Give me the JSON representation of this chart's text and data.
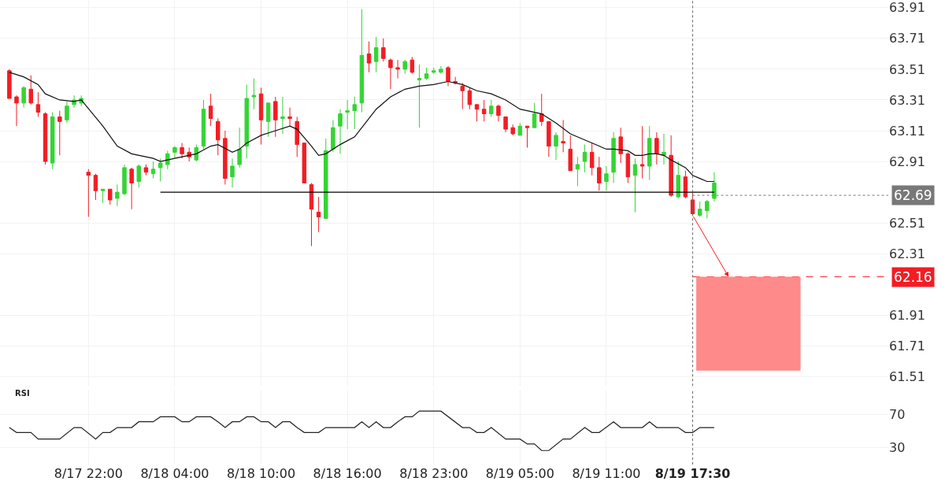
{
  "chart_data": [
    {
      "type": "candlestick",
      "categories": [
        null,
        null,
        null,
        null,
        null,
        null,
        null,
        null,
        null,
        null,
        null,
        "8/17 22:00",
        null,
        null,
        null,
        null,
        null,
        null,
        null,
        null,
        null,
        null,
        null,
        "8/18 04:00",
        null,
        null,
        null,
        null,
        null,
        null,
        null,
        null,
        null,
        null,
        null,
        "8/18 10:00",
        null,
        null,
        null,
        null,
        null,
        null,
        null,
        null,
        null,
        null,
        null,
        "8/18 16:00",
        null,
        null,
        null,
        null,
        null,
        null,
        null,
        null,
        null,
        null,
        null,
        "8/18 23:00",
        null,
        null,
        null,
        null,
        null,
        null,
        null,
        null,
        null,
        null,
        null,
        "8/19 05:00",
        null,
        null,
        null,
        null,
        null,
        null,
        null,
        null,
        null,
        null,
        null,
        "8/19 11:00",
        null,
        null,
        null,
        null,
        null,
        null,
        null,
        null,
        null,
        null,
        null,
        "8/19 17:30",
        null,
        null,
        null,
        null,
        null,
        null,
        null,
        null,
        null,
        null,
        null,
        null,
        null,
        null,
        null,
        null,
        null,
        null,
        null,
        null,
        null,
        null,
        null,
        null,
        null,
        null,
        null
      ],
      "ohlc": [
        [
          63.5,
          63.51,
          63.32,
          63.32
        ],
        [
          63.33,
          63.34,
          63.14,
          63.29
        ],
        [
          63.29,
          63.4,
          63.26,
          63.39
        ],
        [
          63.38,
          63.47,
          63.28,
          63.29
        ],
        [
          63.28,
          63.36,
          63.2,
          63.23
        ],
        [
          63.22,
          63.23,
          62.89,
          62.91
        ],
        [
          62.9,
          63.23,
          62.86,
          63.2
        ],
        [
          63.2,
          63.24,
          62.95,
          63.17
        ],
        [
          63.18,
          63.3,
          63.16,
          63.27
        ],
        [
          63.28,
          63.34,
          63.26,
          63.31
        ],
        [
          63.29,
          63.34,
          63.27,
          63.32
        ],
        [
          62.84,
          62.86,
          62.55,
          62.82
        ],
        [
          62.82,
          62.83,
          62.66,
          62.72
        ],
        [
          62.72,
          62.73,
          62.64,
          62.73
        ],
        [
          62.73,
          62.73,
          62.63,
          62.66
        ],
        [
          62.67,
          62.76,
          62.62,
          62.71
        ],
        [
          62.7,
          62.89,
          62.69,
          62.87
        ],
        [
          62.86,
          62.87,
          62.6,
          62.77
        ],
        [
          62.78,
          62.89,
          62.74,
          62.88
        ],
        [
          62.87,
          62.89,
          62.82,
          62.84
        ],
        [
          62.83,
          62.91,
          62.8,
          62.86
        ],
        [
          62.87,
          62.93,
          62.78,
          62.9
        ],
        [
          62.89,
          62.98,
          62.86,
          62.96
        ],
        [
          62.97,
          63.01,
          62.93,
          63.0
        ],
        [
          63.0,
          63.03,
          62.93,
          62.96
        ],
        [
          62.97,
          63.0,
          62.91,
          62.94
        ],
        [
          62.92,
          63.02,
          62.91,
          63.0
        ],
        [
          63.01,
          63.31,
          62.99,
          63.25
        ],
        [
          63.27,
          63.35,
          63.14,
          63.19
        ],
        [
          63.17,
          63.19,
          62.95,
          63.05
        ],
        [
          63.06,
          63.11,
          62.76,
          62.8
        ],
        [
          62.81,
          62.93,
          62.74,
          62.88
        ],
        [
          62.89,
          63.13,
          62.87,
          62.99
        ],
        [
          63.01,
          63.41,
          62.93,
          63.32
        ],
        [
          63.33,
          63.45,
          63.25,
          63.34
        ],
        [
          63.35,
          63.39,
          63.02,
          63.18
        ],
        [
          63.17,
          63.29,
          63.07,
          63.29
        ],
        [
          63.3,
          63.33,
          63.07,
          63.18
        ],
        [
          63.19,
          63.33,
          63.09,
          63.2
        ],
        [
          63.2,
          63.26,
          63.14,
          63.19
        ],
        [
          63.17,
          63.2,
          62.94,
          63.02
        ],
        [
          63.03,
          63.03,
          62.77,
          62.77
        ],
        [
          62.76,
          62.77,
          62.36,
          62.6
        ],
        [
          62.58,
          62.68,
          62.45,
          62.55
        ],
        [
          62.54,
          63.06,
          62.54,
          62.98
        ],
        [
          62.99,
          63.18,
          62.97,
          63.13
        ],
        [
          63.14,
          63.25,
          62.96,
          63.22
        ],
        [
          63.23,
          63.31,
          63.12,
          63.24
        ],
        [
          63.24,
          63.33,
          63.12,
          63.28
        ],
        [
          63.29,
          63.9,
          63.23,
          63.6
        ],
        [
          63.61,
          63.69,
          63.49,
          63.55
        ],
        [
          63.56,
          63.72,
          63.49,
          63.65
        ],
        [
          63.65,
          63.71,
          63.56,
          63.58
        ],
        [
          63.57,
          63.58,
          63.38,
          63.52
        ],
        [
          63.52,
          63.57,
          63.45,
          63.51
        ],
        [
          63.51,
          63.57,
          63.48,
          63.56
        ],
        [
          63.57,
          63.59,
          63.48,
          63.49
        ],
        [
          63.44,
          63.54,
          63.13,
          63.45
        ],
        [
          63.45,
          63.52,
          63.44,
          63.48
        ],
        [
          63.49,
          63.52,
          63.48,
          63.5
        ],
        [
          63.49,
          63.53,
          63.48,
          63.51
        ],
        [
          63.52,
          63.53,
          63.4,
          63.43
        ],
        [
          63.43,
          63.46,
          63.41,
          63.42
        ],
        [
          63.4,
          63.42,
          63.25,
          63.37
        ],
        [
          63.37,
          63.39,
          63.25,
          63.28
        ],
        [
          63.28,
          63.28,
          63.17,
          63.25
        ],
        [
          63.25,
          63.31,
          63.17,
          63.22
        ],
        [
          63.22,
          63.31,
          63.2,
          63.27
        ],
        [
          63.27,
          63.28,
          63.17,
          63.21
        ],
        [
          63.2,
          63.2,
          63.1,
          63.12
        ],
        [
          63.13,
          63.15,
          63.08,
          63.09
        ],
        [
          63.08,
          63.16,
          63.08,
          63.14
        ],
        [
          63.14,
          63.14,
          63.0,
          63.13
        ],
        [
          63.13,
          63.29,
          63.13,
          63.22
        ],
        [
          63.22,
          63.35,
          63.14,
          63.17
        ],
        [
          63.17,
          63.17,
          62.94,
          63.01
        ],
        [
          63.01,
          63.1,
          62.92,
          63.08
        ],
        [
          63.04,
          63.18,
          62.97,
          63.03
        ],
        [
          62.99,
          63.08,
          62.85,
          62.85
        ],
        [
          62.86,
          62.94,
          62.75,
          62.89
        ],
        [
          62.91,
          63.02,
          62.84,
          62.97
        ],
        [
          62.97,
          63.03,
          62.82,
          62.87
        ],
        [
          62.87,
          62.94,
          62.72,
          62.77
        ],
        [
          62.78,
          62.88,
          62.72,
          62.83
        ],
        [
          62.84,
          63.1,
          62.77,
          63.06
        ],
        [
          63.07,
          63.13,
          62.9,
          62.96
        ],
        [
          62.96,
          62.97,
          62.77,
          62.81
        ],
        [
          62.82,
          62.93,
          62.58,
          62.89
        ],
        [
          62.89,
          63.14,
          62.8,
          62.88
        ],
        [
          62.88,
          63.14,
          62.79,
          63.06
        ],
        [
          63.06,
          63.1,
          62.89,
          62.96
        ],
        [
          62.95,
          63.09,
          62.89,
          62.97
        ],
        [
          62.95,
          63.08,
          62.68,
          62.69
        ],
        [
          62.68,
          62.91,
          62.67,
          62.82
        ],
        [
          62.81,
          62.85,
          62.67,
          62.68
        ],
        [
          62.66,
          62.72,
          62.56,
          62.57
        ],
        [
          62.56,
          62.65,
          62.55,
          62.6
        ],
        [
          62.59,
          62.66,
          62.54,
          62.65
        ],
        [
          62.67,
          62.84,
          62.65,
          62.77
        ],
        null,
        null,
        null,
        null,
        null,
        null,
        null,
        null,
        null,
        null,
        null,
        null,
        null,
        null,
        null,
        null,
        null,
        null,
        null,
        null,
        null,
        null,
        null,
        null
      ],
      "colors": [
        "#f21d24",
        "#f21d24",
        "#35d435",
        "#f21d24",
        "#f21d24",
        "#f21d24",
        "#35d435",
        "#f21d24",
        "#35d435",
        "#35d435",
        "#35d435",
        "#f21d24",
        "#f21d24",
        "#35d435",
        "#f21d24",
        "#35d435",
        "#35d435",
        "#f21d24",
        "#35d435",
        "#f21d24",
        "#35d435",
        "#35d435",
        "#35d435",
        "#35d435",
        "#f21d24",
        "#f21d24",
        "#35d435",
        "#35d435",
        "#f21d24",
        "#f21d24",
        "#f21d24",
        "#35d435",
        "#35d435",
        "#35d435",
        "#35d435",
        "#f21d24",
        "#35d435",
        "#f21d24",
        "#35d435",
        "#f21d24",
        "#f21d24",
        "#f21d24",
        "#f21d24",
        "#f21d24",
        "#35d435",
        "#35d435",
        "#35d435",
        "#35d435",
        "#35d435",
        "#35d435",
        "#f21d24",
        "#35d435",
        "#f21d24",
        "#f21d24",
        "#f21d24",
        "#35d435",
        "#f21d24",
        "#35d435",
        "#35d435",
        "#35d435",
        "#35d435",
        "#f21d24",
        "#f21d24",
        "#f21d24",
        "#f21d24",
        "#f21d24",
        "#f21d24",
        "#35d435",
        "#f21d24",
        "#f21d24",
        "#f21d24",
        "#35d435",
        "#f21d24",
        "#35d435",
        "#f21d24",
        "#f21d24",
        "#35d435",
        "#f21d24",
        "#f21d24",
        "#35d435",
        "#35d435",
        "#f21d24",
        "#f21d24",
        "#35d435",
        "#35d435",
        "#f21d24",
        "#f21d24",
        "#35d435",
        "#f21d24",
        "#35d435",
        "#f21d24",
        "#35d435",
        "#f21d24",
        "#35d435",
        "#f21d24",
        "#f21d24",
        "#35d435",
        "#35d435",
        "#35d435",
        null,
        null,
        null,
        null,
        null,
        null,
        null,
        null,
        null,
        null,
        null,
        null,
        null,
        null,
        null,
        null,
        null,
        null,
        null,
        null,
        null,
        null,
        null,
        null
      ],
      "series": [
        {
          "type": "line",
          "color": "#111111",
          "values": [
            63.49,
            null,
            63.46,
            null,
            63.41,
            63.35,
            null,
            63.31,
            null,
            63.3,
            63.31,
            null,
            null,
            63.14,
            null,
            63.01,
            null,
            62.96,
            null,
            null,
            62.93,
            62.91,
            null,
            62.93,
            null,
            null,
            62.96,
            null,
            63.01,
            63.02,
            null,
            62.97,
            62.99,
            63.03,
            null,
            63.08,
            null,
            63.11,
            null,
            63.14,
            63.12,
            null,
            63.01,
            62.95,
            62.96,
            null,
            63.02,
            null,
            63.07,
            63.13,
            null,
            63.25,
            null,
            63.33,
            null,
            63.38,
            null,
            63.4,
            null,
            63.41,
            null,
            63.43,
            null,
            63.41,
            null,
            63.37,
            null,
            63.35,
            null,
            63.31,
            null,
            63.25,
            63.24,
            63.23,
            63.22,
            null,
            63.16,
            null,
            63.09,
            null,
            63.05,
            null,
            63.01,
            62.99,
            62.99,
            null,
            62.98,
            62.95,
            62.95,
            62.96,
            62.96,
            62.95,
            62.92,
            null,
            62.87,
            62.82,
            62.8,
            62.78,
            62.78,
            null,
            null,
            null,
            null,
            null,
            null,
            null,
            null,
            null,
            null,
            null,
            null,
            null,
            null,
            null,
            null,
            null,
            null,
            null,
            null,
            null,
            null,
            null,
            null
          ]
        },
        {
          "type": "line",
          "color": "#000000",
          "values": [
            null,
            null,
            null,
            null,
            null,
            null,
            null,
            null,
            null,
            null,
            null,
            null,
            null,
            null,
            null,
            null,
            null,
            null,
            null,
            null,
            null,
            62.71,
            null,
            null,
            null,
            null,
            null,
            null,
            null,
            null,
            null,
            null,
            null,
            null,
            null,
            null,
            null,
            null,
            null,
            null,
            null,
            null,
            null,
            null,
            null,
            null,
            null,
            null,
            null,
            null,
            null,
            null,
            null,
            null,
            null,
            null,
            null,
            null,
            null,
            null,
            null,
            null,
            null,
            null,
            null,
            null,
            null,
            null,
            null,
            null,
            null,
            null,
            null,
            null,
            null,
            null,
            null,
            null,
            null,
            null,
            null,
            null,
            null,
            null,
            null,
            null,
            null,
            null,
            null,
            null,
            null,
            null,
            null,
            null,
            null,
            null,
            null,
            null,
            62.71,
            null,
            null,
            null,
            null,
            null,
            null,
            null,
            null,
            null,
            null,
            null,
            null,
            null,
            null,
            null,
            null,
            null,
            null,
            null,
            null,
            null,
            null,
            null,
            null
          ]
        }
      ],
      "ylim": [
        61.45,
        63.96
      ],
      "yticks": [
        61.51,
        61.71,
        61.91,
        62.31,
        62.51,
        62.91,
        63.11,
        63.31,
        63.51,
        63.71,
        63.91
      ],
      "ref_lines": [
        {
          "axis": "y",
          "value": 62.69,
          "label": "62.69",
          "color": "#787878",
          "line_style": "dotted"
        },
        {
          "axis": "y",
          "value": 62.16,
          "label": "62.16",
          "color": "#f21d24",
          "line_style": "dashed"
        },
        {
          "axis": "x",
          "value": "8/19 17:30",
          "color": "#666666",
          "line_style": "dotted"
        }
      ],
      "bands": [
        {
          "axis": "y",
          "from": 61.55,
          "to": 62.16,
          "color": "#ff8a8a"
        }
      ],
      "grid": true,
      "tick_labels": "y"
    },
    {
      "type": "line",
      "title": "RSI",
      "categories": [
        null,
        null,
        null,
        null,
        null,
        null,
        null,
        null,
        null,
        null,
        null,
        "8/17 22:00",
        null,
        null,
        null,
        null,
        null,
        null,
        null,
        null,
        null,
        null,
        null,
        "8/18 04:00",
        null,
        null,
        null,
        null,
        null,
        null,
        null,
        null,
        null,
        null,
        null,
        "8/18 10:00",
        null,
        null,
        null,
        null,
        null,
        null,
        null,
        null,
        null,
        null,
        null,
        "8/18 16:00",
        null,
        null,
        null,
        null,
        null,
        null,
        null,
        null,
        null,
        null,
        null,
        "8/18 23:00",
        null,
        null,
        null,
        null,
        null,
        null,
        null,
        null,
        null,
        null,
        null,
        "8/19 05:00",
        null,
        null,
        null,
        null,
        null,
        null,
        null,
        null,
        null,
        null,
        null,
        "8/19 11:00",
        null,
        null,
        null,
        null,
        null,
        null,
        null,
        null,
        null,
        null,
        null,
        "8/19 17:30",
        null,
        null,
        null,
        null,
        null,
        null,
        null,
        null,
        null,
        null,
        null,
        null,
        null,
        null,
        null,
        null,
        null,
        null,
        null,
        null,
        null,
        null,
        null,
        null,
        null,
        null,
        null
      ],
      "series": [
        {
          "color": "#222222",
          "values": [
            54,
            48,
            null,
            48,
            40,
            null,
            null,
            40,
            null,
            54,
            54,
            null,
            40,
            48,
            48,
            54,
            null,
            54,
            61,
            null,
            61,
            67,
            null,
            67,
            61,
            61,
            67,
            null,
            67,
            61,
            54,
            61,
            61,
            67,
            67,
            61,
            61,
            54,
            61,
            61,
            54,
            48,
            null,
            48,
            54,
            null,
            null,
            null,
            54,
            61,
            54,
            61,
            54,
            54,
            61,
            67,
            67,
            74,
            null,
            null,
            74,
            null,
            null,
            54,
            54,
            48,
            48,
            54,
            null,
            40,
            null,
            40,
            34,
            34,
            26,
            26,
            null,
            40,
            40,
            null,
            54,
            48,
            48,
            null,
            61,
            54,
            null,
            null,
            54,
            61,
            54,
            null,
            null,
            54,
            48,
            48,
            54,
            null,
            54,
            null,
            null,
            null,
            null,
            null,
            null,
            null,
            null,
            null,
            null,
            null,
            null,
            null,
            null,
            null,
            null,
            null,
            null,
            null,
            null,
            null,
            null,
            null,
            null
          ]
        }
      ],
      "ylim": [
        9,
        100
      ],
      "yticks": [
        30,
        70
      ],
      "ref_lines": [
        {
          "axis": "x",
          "value": "8/19 17:30",
          "color": "#666666",
          "line_style": "dotted"
        }
      ],
      "grid": true
    }
  ]
}
